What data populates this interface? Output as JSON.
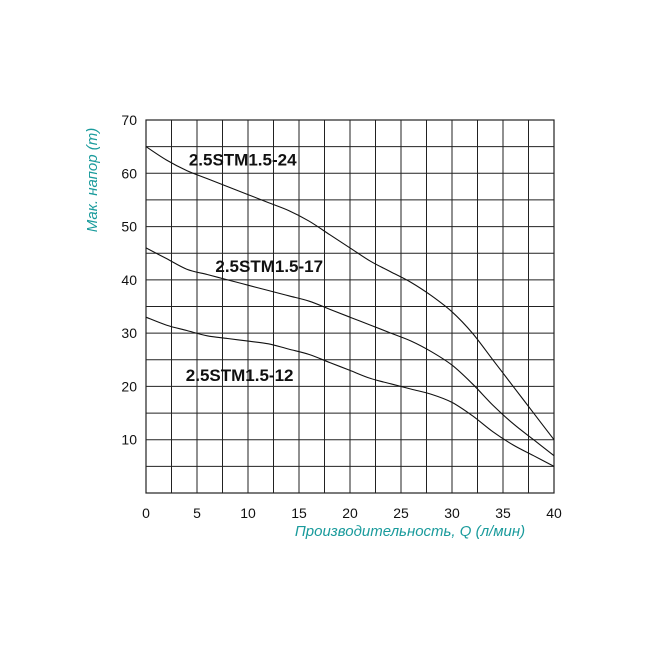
{
  "chart_data": {
    "type": "line",
    "xlabel": "Производительность, Q (л/мин)",
    "ylabel": "Мак. напор (m)",
    "xlim": [
      0,
      40
    ],
    "ylim": [
      0,
      70
    ],
    "x_ticks": [
      "0",
      "5",
      "10",
      "15",
      "20",
      "25",
      "30",
      "35",
      "40"
    ],
    "y_ticks": [
      "10",
      "20",
      "30",
      "40",
      "50",
      "60",
      "70"
    ],
    "grid": true,
    "legend": "inline labels",
    "colors": {
      "curve": "#111111",
      "axis_label": "#1a9b9c",
      "grid": "#222222"
    },
    "series": [
      {
        "name": "2.5STM1.5-24",
        "x": [
          0,
          2,
          4,
          6,
          8,
          10,
          12,
          14,
          16,
          18,
          20,
          22,
          24,
          26,
          28,
          30,
          32,
          34,
          36,
          38,
          40
        ],
        "y": [
          65,
          62.5,
          60.5,
          59,
          57.5,
          56,
          54.5,
          53,
          51,
          48.5,
          46,
          43.5,
          41.5,
          39.5,
          37,
          34,
          30,
          25,
          20,
          15,
          10
        ]
      },
      {
        "name": "2.5STM1.5-17",
        "x": [
          0,
          2,
          4,
          6,
          8,
          10,
          12,
          14,
          16,
          18,
          20,
          22,
          24,
          26,
          28,
          30,
          32,
          34,
          36,
          38,
          40
        ],
        "y": [
          46,
          44,
          42,
          41,
          40,
          39,
          38,
          37,
          36,
          34.5,
          33,
          31.5,
          30,
          28.5,
          26.5,
          24,
          20.5,
          16.5,
          13,
          10,
          7
        ]
      },
      {
        "name": "2.5STM1.5-12",
        "x": [
          0,
          2,
          4,
          6,
          8,
          10,
          12,
          14,
          16,
          18,
          20,
          22,
          24,
          26,
          28,
          30,
          32,
          34,
          36,
          38,
          40
        ],
        "y": [
          33,
          31.5,
          30.5,
          29.5,
          29,
          28.5,
          28,
          27,
          26,
          24.5,
          23,
          21.5,
          20.5,
          19.5,
          18.5,
          17,
          14.5,
          11.5,
          9,
          7,
          5
        ]
      }
    ]
  }
}
